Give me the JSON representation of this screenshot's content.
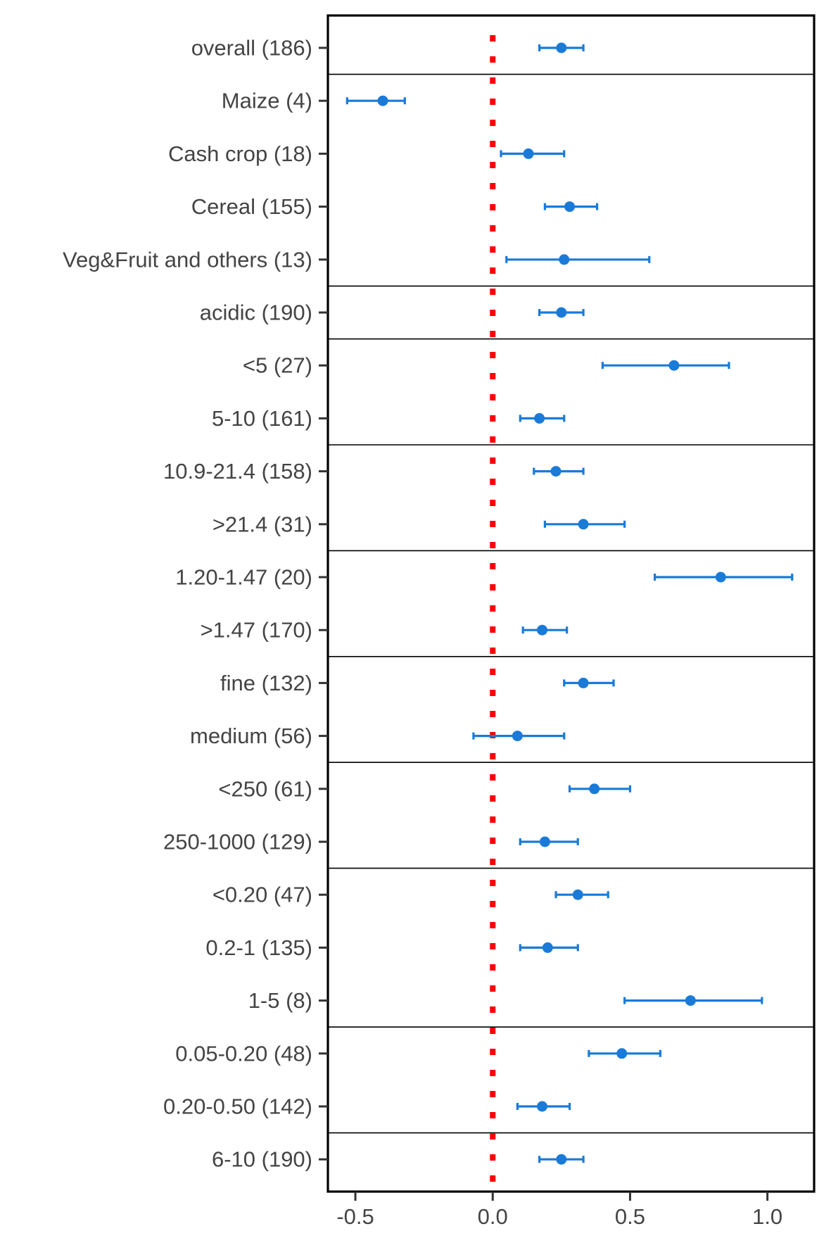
{
  "chart_data": {
    "type": "forest",
    "title": "",
    "xlabel": "",
    "ylabel": "",
    "xlim": [
      -0.6,
      1.17
    ],
    "x_ticks": [
      -0.5,
      0.0,
      0.5,
      1.0
    ],
    "x_tick_labels": [
      "-0.5",
      "0.0",
      "0.5",
      "1.0"
    ],
    "reference_line": 0.0,
    "grid": false,
    "colors": {
      "point": "#1a7ad8",
      "reference": "#ff0000",
      "axis": "#000000",
      "label": "#444444"
    },
    "categories": [
      "overall (186)",
      "Maize (4)",
      "Cash crop (18)",
      "Cereal (155)",
      "Veg&Fruit and others (13)",
      "acidic (190)",
      "<5 (27)",
      "5-10 (161)",
      "10.9-21.4 (158)",
      ">21.4 (31)",
      "1.20-1.47 (20)",
      ">1.47 (170)",
      "fine (132)",
      "medium (56)",
      "<250 (61)",
      "250-1000 (129)",
      "<0.20 (47)",
      "0.2-1 (135)",
      "1-5 (8)",
      "0.05-0.20 (48)",
      "0.20-0.50 (142)",
      "6-10 (190)"
    ],
    "estimates": [
      0.25,
      -0.4,
      0.13,
      0.28,
      0.26,
      0.25,
      0.66,
      0.17,
      0.23,
      0.33,
      0.83,
      0.18,
      0.33,
      0.09,
      0.37,
      0.19,
      0.31,
      0.2,
      0.72,
      0.47,
      0.18,
      0.25
    ],
    "ci_lower": [
      0.17,
      -0.53,
      0.03,
      0.19,
      0.05,
      0.17,
      0.4,
      0.1,
      0.15,
      0.19,
      0.59,
      0.11,
      0.26,
      -0.07,
      0.28,
      0.1,
      0.23,
      0.1,
      0.48,
      0.35,
      0.09,
      0.17
    ],
    "ci_upper": [
      0.33,
      -0.32,
      0.26,
      0.38,
      0.57,
      0.33,
      0.86,
      0.26,
      0.33,
      0.48,
      1.09,
      0.27,
      0.44,
      0.26,
      0.5,
      0.31,
      0.42,
      0.31,
      0.98,
      0.61,
      0.28,
      0.33
    ],
    "groups": [
      [
        0
      ],
      [
        1,
        2,
        3,
        4
      ],
      [
        5
      ],
      [
        6,
        7
      ],
      [
        8,
        9
      ],
      [
        10,
        11
      ],
      [
        12,
        13
      ],
      [
        14,
        15
      ],
      [
        16,
        17,
        18
      ],
      [
        19,
        20
      ],
      [
        21
      ]
    ]
  }
}
